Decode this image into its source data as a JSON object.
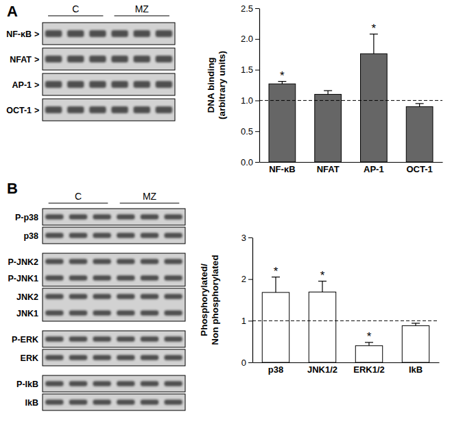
{
  "chart_data": [
    {
      "type": "bar",
      "panel": "A",
      "categories": [
        "NF-κB",
        "NFAT",
        "AP-1",
        "OCT-1"
      ],
      "values": [
        1.27,
        1.1,
        1.76,
        0.9
      ],
      "errors": [
        0.04,
        0.06,
        0.32,
        0.05
      ],
      "annotations": [
        "*",
        null,
        "*",
        null
      ],
      "reference_line": 1,
      "color": "#666666",
      "ylabel": [
        "DNA binding",
        "(arbitrary units)"
      ],
      "ylim": [
        0,
        2.5
      ],
      "yticks": [
        {
          "value": 0,
          "label": "0.0"
        },
        0.5,
        {
          "value": 1,
          "label": "1.0"
        },
        1.5,
        {
          "value": 2,
          "label": "2.0"
        },
        2.5
      ],
      "blot": {
        "groups": [
          "C",
          "MZ"
        ],
        "row_suffix": ">",
        "sections": [
          [
            [
              "NF-κB"
            ]
          ],
          [
            [
              "NFAT"
            ]
          ],
          [
            [
              "AP-1"
            ]
          ],
          [
            [
              "OCT-1"
            ]
          ]
        ]
      }
    },
    {
      "type": "bar",
      "panel": "B",
      "categories": [
        "p38",
        "JNK1/2",
        "ERK1/2",
        "IkB"
      ],
      "values": [
        1.68,
        1.69,
        0.4,
        0.88
      ],
      "errors": [
        0.37,
        0.26,
        0.08,
        0.06
      ],
      "annotations": [
        "*",
        "*",
        "*",
        null
      ],
      "reference_line": 1,
      "color": "#ffffff",
      "ylabel": [
        "Phosphorylated/",
        "Non phosphorylated"
      ],
      "ylim": [
        0,
        3
      ],
      "yticks": [
        0,
        1,
        2,
        3
      ],
      "blot": {
        "groups": [
          "C",
          "MZ"
        ],
        "sections": [
          [
            [
              "P-p38"
            ],
            [
              "p38"
            ]
          ],
          [
            [
              "P-JNK2",
              "P-JNK1"
            ],
            [
              "JNK2",
              "JNK1"
            ]
          ],
          [
            [
              "P-ERK"
            ],
            [
              "ERK"
            ]
          ],
          [
            [
              "P-IkB"
            ],
            [
              "IkB"
            ]
          ]
        ]
      }
    }
  ]
}
